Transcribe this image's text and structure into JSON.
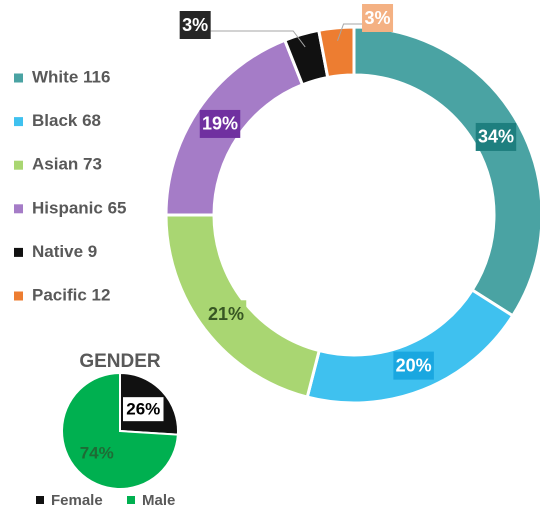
{
  "chart_data": [
    {
      "type": "donut",
      "categories": [
        "White 116",
        "Black 68",
        "Asian 73",
        "Hispanic 65",
        "Native 9",
        "Pacific 12"
      ],
      "values": [
        34,
        20,
        21,
        19,
        3,
        3
      ],
      "value_labels": [
        "34%",
        "20%",
        "21%",
        "19%",
        "3%",
        "3%"
      ],
      "colors": [
        "#4aa3a3",
        "#3fc1ef",
        "#a9d672",
        "#a57cc7",
        "#111111",
        "#ed7d31"
      ],
      "label_colors": [
        "#1e7f7f",
        "#1aa7e0",
        "#a9d672",
        "#7030a0",
        "#262626",
        "#f4b183"
      ]
    },
    {
      "type": "pie",
      "title": "GENDER",
      "categories": [
        "Female",
        "Male"
      ],
      "values": [
        26,
        74
      ],
      "value_labels": [
        "26%",
        "74%"
      ],
      "colors": [
        "#111111",
        "#00b050"
      ]
    }
  ]
}
